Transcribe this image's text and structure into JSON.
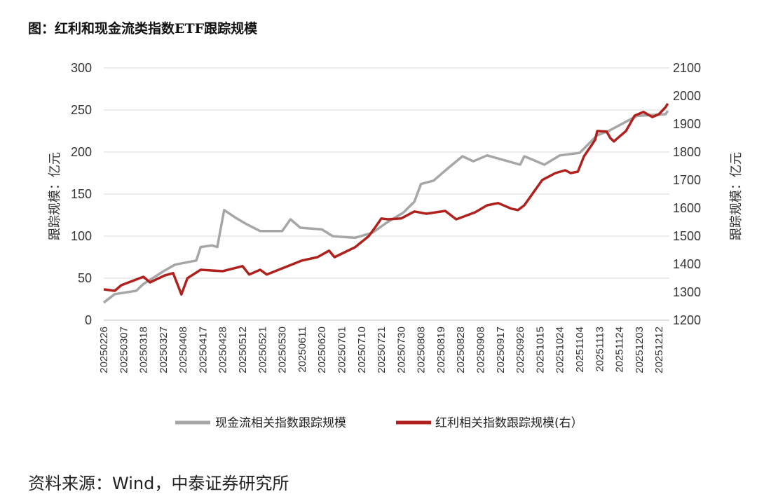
{
  "title": "图：红利和现金流类指数ETF跟踪规模",
  "source": "资料来源：Wind，中泰证券研究所",
  "chart_data": {
    "type": "line",
    "title": "图：红利和现金流类指数ETF跟踪规模",
    "ylabel_left": "跟踪规模：亿元",
    "ylabel_right": "跟踪规模：亿元",
    "ylim_left": [
      0,
      300
    ],
    "ylim_right": [
      1200,
      2100
    ],
    "yticks_left": [
      "0",
      "50",
      "100",
      "150",
      "200",
      "250",
      "300"
    ],
    "yticks_right": [
      "1200",
      "1300",
      "1400",
      "1500",
      "1600",
      "1700",
      "1800",
      "1900",
      "2000",
      "2100"
    ],
    "xticks": [
      "20250226",
      "20250307",
      "20250318",
      "20250327",
      "20250408",
      "20250417",
      "20250428",
      "20250512",
      "20250521",
      "20250530",
      "20250611",
      "20250620",
      "20250701",
      "20250710",
      "20250721",
      "20250730",
      "20250808",
      "20250819",
      "20250828",
      "20250908",
      "20250917",
      "20250926",
      "20251015",
      "20251024",
      "20251104",
      "20251113",
      "20251124",
      "20251203",
      "20251212"
    ],
    "grid": true,
    "legend_position": "bottom",
    "colors": {
      "cash_flow": "#a6a6a6",
      "dividend": "#b0201c"
    },
    "series": [
      {
        "name": "现金流相关指数跟踪规模",
        "axis": "left",
        "points": [
          [
            "20250226",
            21
          ],
          [
            "20250303",
            31
          ],
          [
            "20250314",
            35
          ],
          [
            "20250318",
            43
          ],
          [
            "20250327",
            58
          ],
          [
            "20250403",
            66
          ],
          [
            "20250414",
            71
          ],
          [
            "20250416",
            87
          ],
          [
            "20250422",
            89
          ],
          [
            "20250425",
            87
          ],
          [
            "20250429",
            131
          ],
          [
            "20250507",
            122
          ],
          [
            "20250514",
            114
          ],
          [
            "20250520",
            106
          ],
          [
            "20250530",
            106
          ],
          [
            "20250604",
            120
          ],
          [
            "20250610",
            110
          ],
          [
            "20250620",
            108
          ],
          [
            "20250626",
            100
          ],
          [
            "20250707",
            98
          ],
          [
            "20250716",
            104
          ],
          [
            "20250724",
            117
          ],
          [
            "20250731",
            128
          ],
          [
            "20250805",
            141
          ],
          [
            "20250808",
            162
          ],
          [
            "20250815",
            166
          ],
          [
            "20250821",
            178
          ],
          [
            "20250829",
            195
          ],
          [
            "20250904",
            189
          ],
          [
            "20250911",
            196
          ],
          [
            "20250922",
            188
          ],
          [
            "20250926",
            185
          ],
          [
            "20250930",
            195
          ],
          [
            "20251017",
            185
          ],
          [
            "20251024",
            196
          ],
          [
            "20251104",
            199
          ],
          [
            "20251112",
            220
          ],
          [
            "20251118",
            225
          ],
          [
            "20251202",
            243
          ],
          [
            "20251215",
            245
          ],
          [
            "20251216",
            249
          ]
        ]
      },
      {
        "name": "红利相关指数跟踪规模(右）",
        "axis": "right",
        "points": [
          [
            "20250226",
            1310
          ],
          [
            "20250303",
            1305
          ],
          [
            "20250306",
            1325
          ],
          [
            "20250318",
            1355
          ],
          [
            "20250321",
            1335
          ],
          [
            "20250328",
            1360
          ],
          [
            "20250402",
            1368
          ],
          [
            "20250407",
            1292
          ],
          [
            "20250410",
            1350
          ],
          [
            "20250416",
            1380
          ],
          [
            "20250428",
            1375
          ],
          [
            "20250512",
            1393
          ],
          [
            "20250515",
            1363
          ],
          [
            "20250520",
            1380
          ],
          [
            "20250523",
            1363
          ],
          [
            "20250530",
            1385
          ],
          [
            "20250611",
            1413
          ],
          [
            "20250618",
            1425
          ],
          [
            "20250624",
            1448
          ],
          [
            "20250627",
            1425
          ],
          [
            "20250707",
            1460
          ],
          [
            "20250714",
            1500
          ],
          [
            "20250718",
            1535
          ],
          [
            "20250721",
            1563
          ],
          [
            "20250724",
            1560
          ],
          [
            "20250730",
            1563
          ],
          [
            "20250805",
            1588
          ],
          [
            "20250811",
            1580
          ],
          [
            "20250821",
            1590
          ],
          [
            "20250826",
            1560
          ],
          [
            "20250905",
            1585
          ],
          [
            "20250911",
            1610
          ],
          [
            "20250916",
            1618
          ],
          [
            "20250922",
            1598
          ],
          [
            "20250925",
            1593
          ],
          [
            "20250930",
            1610
          ],
          [
            "20251016",
            1700
          ],
          [
            "20251022",
            1725
          ],
          [
            "20251027",
            1735
          ],
          [
            "20251030",
            1725
          ],
          [
            "20251103",
            1730
          ],
          [
            "20251106",
            1785
          ],
          [
            "20251111",
            1843
          ],
          [
            "20251112",
            1875
          ],
          [
            "20251117",
            1873
          ],
          [
            "20251119",
            1850
          ],
          [
            "20251121",
            1838
          ],
          [
            "20251127",
            1875
          ],
          [
            "20251201",
            1930
          ],
          [
            "20251205",
            1943
          ],
          [
            "20251209",
            1925
          ],
          [
            "20251212",
            1935
          ],
          [
            "20251215",
            1960
          ],
          [
            "20251216",
            1973
          ]
        ]
      }
    ]
  }
}
